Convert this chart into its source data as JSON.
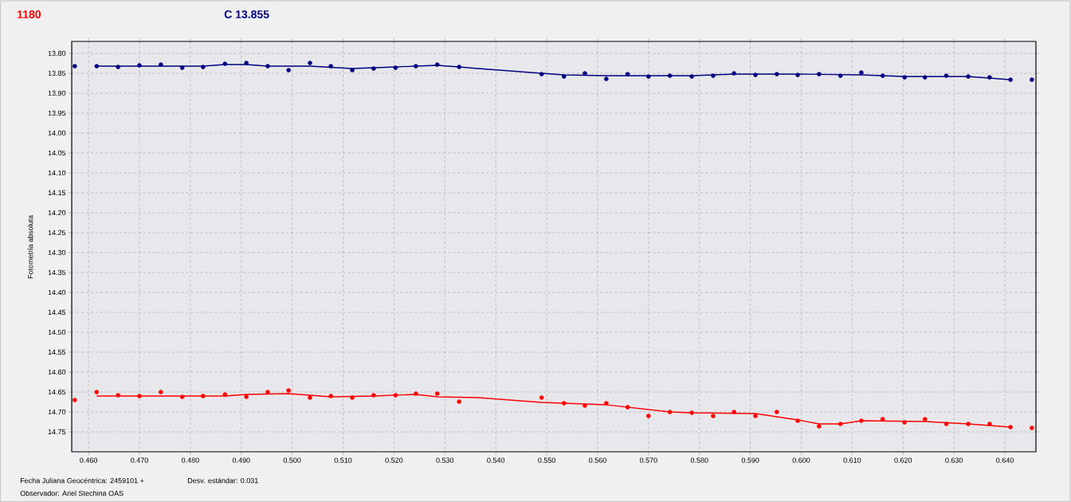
{
  "chart_data": {
    "type": "scatter",
    "title": "1180",
    "subtitle": "C 13.855",
    "ylabel": "Fotometría absoluta",
    "annotations": [
      "Fecha Juliana Geocéntrica: 2459101 +",
      "Desv. estándar: 0.031",
      "Observador: Ariel Stechina OAS"
    ],
    "xlim": [
      0.4567,
      0.6461
    ],
    "ylim": [
      14.8,
      13.77
    ],
    "xticks": [
      {
        "value": 0.46,
        "label": "0.460"
      },
      {
        "value": 0.47,
        "label": "0.470"
      },
      {
        "value": 0.48,
        "label": "0.480"
      },
      {
        "value": 0.49,
        "label": "0.490"
      },
      {
        "value": 0.5,
        "label": "0.500"
      },
      {
        "value": 0.51,
        "label": "0.510"
      },
      {
        "value": 0.52,
        "label": "0.520"
      },
      {
        "value": 0.53,
        "label": "0.530"
      },
      {
        "value": 0.54,
        "label": "0.540"
      },
      {
        "value": 0.55,
        "label": "0.550"
      },
      {
        "value": 0.56,
        "label": "0.560"
      },
      {
        "value": 0.57,
        "label": "0.570"
      },
      {
        "value": 0.58,
        "label": "0.580"
      },
      {
        "value": 0.59,
        "label": "0.590"
      },
      {
        "value": 0.6,
        "label": "0.600"
      },
      {
        "value": 0.61,
        "label": "0.610"
      },
      {
        "value": 0.62,
        "label": "0.620"
      },
      {
        "value": 0.63,
        "label": "0.630"
      },
      {
        "value": 0.64,
        "label": "0.640"
      }
    ],
    "yticks": [
      {
        "value": 13.8,
        "label": "13.80"
      },
      {
        "value": 13.85,
        "label": "13.85"
      },
      {
        "value": 13.9,
        "label": "13.90"
      },
      {
        "value": 13.95,
        "label": "13.95"
      },
      {
        "value": 14.0,
        "label": "14.00"
      },
      {
        "value": 14.05,
        "label": "14.05"
      },
      {
        "value": 14.1,
        "label": "14.10"
      },
      {
        "value": 14.15,
        "label": "14.15"
      },
      {
        "value": 14.2,
        "label": "14.20"
      },
      {
        "value": 14.25,
        "label": "14.25"
      },
      {
        "value": 14.3,
        "label": "14.30"
      },
      {
        "value": 14.35,
        "label": "14.35"
      },
      {
        "value": 14.4,
        "label": "14.40"
      },
      {
        "value": 14.45,
        "label": "14.45"
      },
      {
        "value": 14.5,
        "label": "14.50"
      },
      {
        "value": 14.55,
        "label": "14.55"
      },
      {
        "value": 14.6,
        "label": "14.60"
      },
      {
        "value": 14.65,
        "label": "14.65"
      },
      {
        "value": 14.7,
        "label": "14.70"
      },
      {
        "value": 14.75,
        "label": "14.75"
      }
    ],
    "grid": true,
    "series": [
      {
        "marker": "circle",
        "color": "#000080",
        "x": [
          0.4573,
          0.4616,
          0.4658,
          0.47,
          0.4742,
          0.4784,
          0.4825,
          0.4868,
          0.491,
          0.4952,
          0.4993,
          0.5035,
          0.5076,
          0.5118,
          0.516,
          0.5203,
          0.5243,
          0.5285,
          0.5328,
          0.549,
          0.5534,
          0.5575,
          0.5617,
          0.5659,
          0.57,
          0.5742,
          0.5785,
          0.5827,
          0.5868,
          0.591,
          0.5952,
          0.5993,
          0.6035,
          0.6077,
          0.6118,
          0.616,
          0.6203,
          0.6243,
          0.6285,
          0.6328,
          0.637,
          0.6411,
          0.6453
        ],
        "values": [
          13.832,
          13.832,
          13.834,
          13.83,
          13.828,
          13.836,
          13.834,
          13.826,
          13.824,
          13.832,
          13.842,
          13.824,
          13.832,
          13.842,
          13.838,
          13.836,
          13.832,
          13.828,
          13.834,
          13.852,
          13.858,
          13.85,
          13.864,
          13.852,
          13.858,
          13.856,
          13.858,
          13.856,
          13.85,
          13.854,
          13.852,
          13.854,
          13.852,
          13.856,
          13.848,
          13.856,
          13.86,
          13.86,
          13.856,
          13.858,
          13.86,
          13.866,
          13.866
        ]
      },
      {
        "marker": "circle",
        "color": "#ff0000",
        "x": [
          0.4573,
          0.4616,
          0.4658,
          0.47,
          0.4742,
          0.4784,
          0.4825,
          0.4868,
          0.491,
          0.4952,
          0.4993,
          0.5035,
          0.5076,
          0.5118,
          0.516,
          0.5203,
          0.5243,
          0.5285,
          0.5328,
          0.549,
          0.5534,
          0.5575,
          0.5617,
          0.5659,
          0.57,
          0.5742,
          0.5785,
          0.5827,
          0.5868,
          0.591,
          0.5952,
          0.5993,
          0.6035,
          0.6077,
          0.6118,
          0.616,
          0.6203,
          0.6243,
          0.6285,
          0.6328,
          0.637,
          0.6411,
          0.6453
        ],
        "values": [
          14.67,
          14.65,
          14.658,
          14.66,
          14.65,
          14.662,
          14.66,
          14.656,
          14.662,
          14.65,
          14.646,
          14.664,
          14.66,
          14.664,
          14.658,
          14.658,
          14.654,
          14.654,
          14.674,
          14.664,
          14.678,
          14.684,
          14.678,
          14.688,
          14.71,
          14.7,
          14.702,
          14.71,
          14.7,
          14.71,
          14.7,
          14.722,
          14.736,
          14.73,
          14.722,
          14.718,
          14.726,
          14.718,
          14.73,
          14.73,
          14.73,
          14.738,
          14.74
        ]
      },
      {
        "type": "line",
        "marker": "none",
        "color": "#000080",
        "x": [
          0.4616,
          0.4825,
          0.4868,
          0.491,
          0.4952,
          0.5035,
          0.5118,
          0.5203,
          0.5243,
          0.5285,
          0.5328,
          0.5365,
          0.549,
          0.5534,
          0.5617,
          0.5785,
          0.5868,
          0.5993,
          0.6118,
          0.6203,
          0.6328,
          0.6411
        ],
        "values": [
          13.832,
          13.832,
          13.828,
          13.828,
          13.832,
          13.832,
          13.838,
          13.834,
          13.832,
          13.83,
          13.834,
          13.838,
          13.85,
          13.854,
          13.856,
          13.856,
          13.852,
          13.852,
          13.854,
          13.858,
          13.858,
          13.866
        ]
      },
      {
        "type": "line",
        "marker": "none",
        "color": "#ff0000",
        "x": [
          0.4616,
          0.4868,
          0.491,
          0.4993,
          0.5035,
          0.5076,
          0.516,
          0.5243,
          0.5285,
          0.5365,
          0.549,
          0.5575,
          0.5617,
          0.5742,
          0.5785,
          0.591,
          0.5993,
          0.6035,
          0.6077,
          0.6118,
          0.6243,
          0.6328,
          0.637,
          0.6411
        ],
        "values": [
          14.66,
          14.66,
          14.656,
          14.654,
          14.658,
          14.662,
          14.66,
          14.656,
          14.662,
          14.664,
          14.676,
          14.68,
          14.682,
          14.7,
          14.702,
          14.704,
          14.72,
          14.73,
          14.73,
          14.722,
          14.724,
          14.73,
          14.734,
          14.738
        ]
      }
    ]
  }
}
